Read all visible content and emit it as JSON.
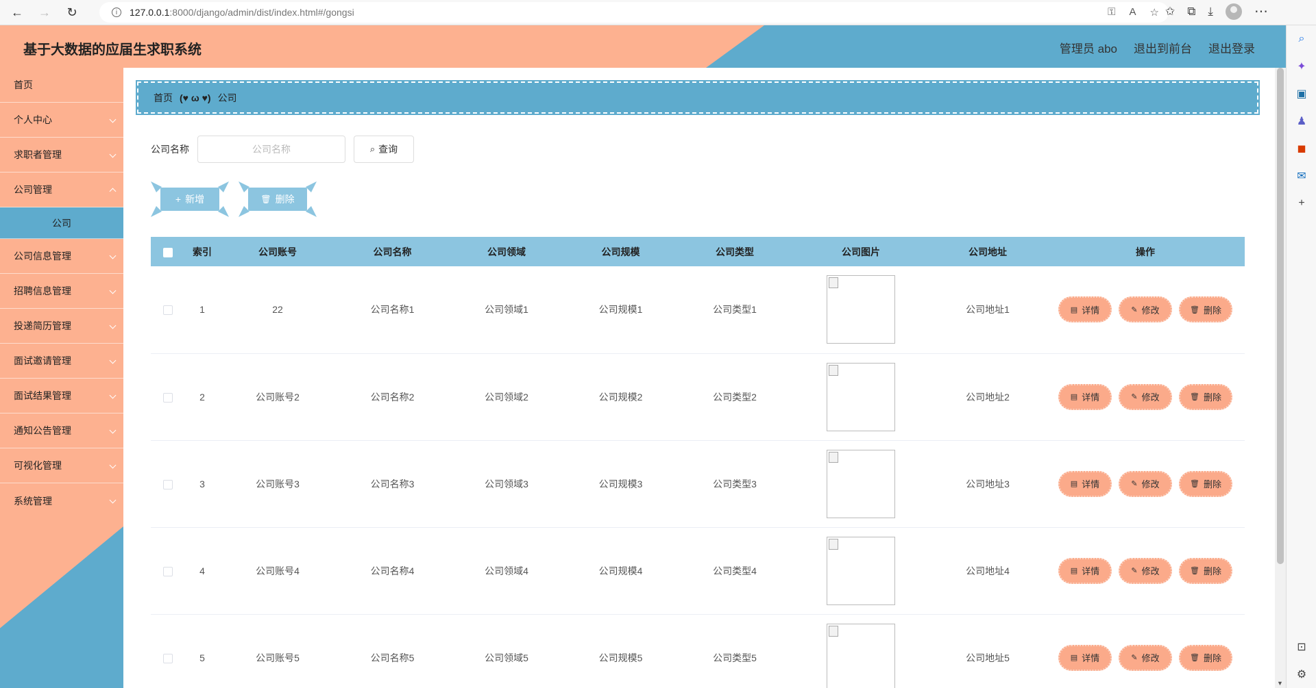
{
  "browser": {
    "url_host": "127.0.0.1",
    "url_rest": ":8000/django/admin/dist/index.html#/gongsi"
  },
  "header": {
    "title": "基于大数据的应届生求职系统",
    "admin": "管理员 abo",
    "front": "退出到前台",
    "logout": "退出登录"
  },
  "menu": {
    "home": "首页",
    "items": [
      "个人中心",
      "求职者管理",
      "公司管理"
    ],
    "sub": "公司",
    "items2": [
      "公司信息管理",
      "招聘信息管理",
      "投递简历管理",
      "面试邀请管理",
      "面试结果管理",
      "通知公告管理",
      "可视化管理",
      "系统管理"
    ]
  },
  "breadcrumb": {
    "home": "首页",
    "sep": "(♥ ω ♥)",
    "current": "公司"
  },
  "search": {
    "label": "公司名称",
    "placeholder": "公司名称",
    "button": "查询"
  },
  "actions": {
    "add": "新增",
    "delete": "删除"
  },
  "table": {
    "headers": [
      "索引",
      "公司账号",
      "公司名称",
      "公司领域",
      "公司规模",
      "公司类型",
      "公司图片",
      "公司地址",
      "操作"
    ],
    "rows": [
      {
        "index": "1",
        "account": "22",
        "name": "公司名称1",
        "field": "公司领域1",
        "scale": "公司规模1",
        "type": "公司类型1",
        "address": "公司地址1"
      },
      {
        "index": "2",
        "account": "公司账号2",
        "name": "公司名称2",
        "field": "公司领域2",
        "scale": "公司规模2",
        "type": "公司类型2",
        "address": "公司地址2"
      },
      {
        "index": "3",
        "account": "公司账号3",
        "name": "公司名称3",
        "field": "公司领域3",
        "scale": "公司规模3",
        "type": "公司类型3",
        "address": "公司地址3"
      },
      {
        "index": "4",
        "account": "公司账号4",
        "name": "公司名称4",
        "field": "公司领域4",
        "scale": "公司规模4",
        "type": "公司类型4",
        "address": "公司地址4"
      },
      {
        "index": "5",
        "account": "公司账号5",
        "name": "公司名称5",
        "field": "公司领域5",
        "scale": "公司规模5",
        "type": "公司类型5",
        "address": "公司地址5"
      }
    ],
    "ops": {
      "detail": "详情",
      "edit": "修改",
      "del": "删除"
    }
  },
  "colors": {
    "primary_orange": "#fdb190",
    "primary_blue": "#5eabcd",
    "light_blue": "#8cc5e0"
  }
}
